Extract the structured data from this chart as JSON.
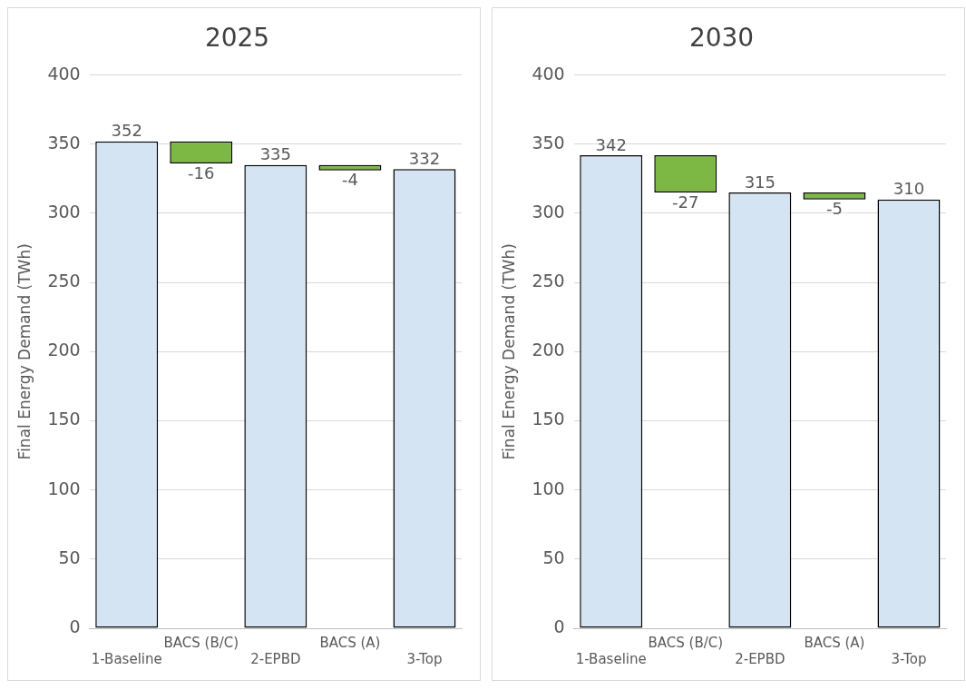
{
  "chart_data": [
    {
      "type": "bar",
      "title": "2025",
      "ylabel": "Final Energy Demand (TWh)",
      "categories": [
        "1-Baseline",
        "BACS (B/C)",
        "2-EPBD",
        "BACS (A)",
        "3-Top"
      ],
      "values": [
        352,
        -16,
        335,
        -4,
        332
      ],
      "base": [
        0,
        352,
        0,
        335,
        0
      ],
      "colors": [
        "#d5e4f2",
        "#7cb843",
        "#d5e4f2",
        "#7cb843",
        "#d5e4f2"
      ],
      "ylim": [
        0,
        400
      ],
      "yticks": [
        0,
        50,
        100,
        150,
        200,
        250,
        300,
        350,
        400
      ],
      "grid": "y",
      "data_labels": true
    },
    {
      "type": "bar",
      "title": "2030",
      "ylabel": "Final Energy Demand (TWh)",
      "categories": [
        "1-Baseline",
        "BACS (B/C)",
        "2-EPBD",
        "BACS (A)",
        "3-Top"
      ],
      "values": [
        342,
        -27,
        315,
        -5,
        310
      ],
      "base": [
        0,
        342,
        0,
        315,
        0
      ],
      "colors": [
        "#d5e4f2",
        "#7cb843",
        "#d5e4f2",
        "#7cb843",
        "#d5e4f2"
      ],
      "ylim": [
        0,
        400
      ],
      "yticks": [
        0,
        50,
        100,
        150,
        200,
        250,
        300,
        350,
        400
      ],
      "grid": "y",
      "data_labels": true
    }
  ]
}
